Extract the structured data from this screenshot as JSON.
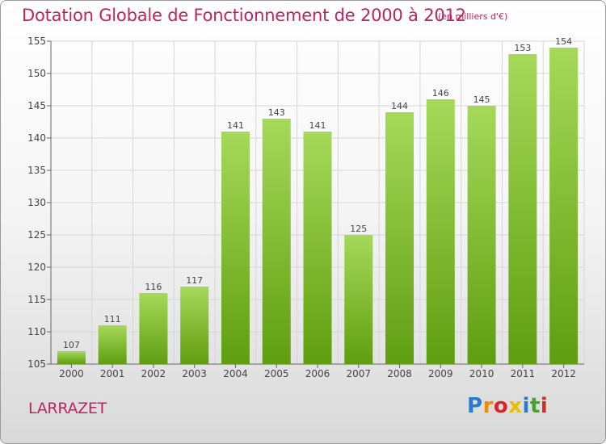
{
  "header": {
    "title": "Dotation Globale de Fonctionnement de 2000 à 2012",
    "subtitle": "(en milliers d'€)"
  },
  "footer": {
    "commune": "LARRAZET",
    "brand": "Proxiti",
    "brand_letter_colors": [
      "#2a7ad0",
      "#f08a00",
      "#d8262c",
      "#e8c000",
      "#2a7ad0",
      "#4aa02c",
      "#d8262c"
    ]
  },
  "colors": {
    "title": "#c0235e",
    "bar_light": "#a6d95a",
    "bar_dark": "#5f9e10",
    "grid": "#d6d6d6",
    "axis": "#666666"
  },
  "chart_data": {
    "type": "bar",
    "title": "Dotation Globale de Fonctionnement de 2000 à 2012",
    "subtitle": "(en milliers d'€)",
    "xlabel": "",
    "ylabel": "",
    "categories": [
      "2000",
      "2001",
      "2002",
      "2003",
      "2004",
      "2005",
      "2006",
      "2007",
      "2008",
      "2009",
      "2010",
      "2011",
      "2012"
    ],
    "values": [
      107,
      111,
      116,
      117,
      141,
      143,
      141,
      125,
      144,
      146,
      145,
      153,
      154
    ],
    "ylim": [
      105,
      155
    ],
    "yticks": [
      105,
      110,
      115,
      120,
      125,
      130,
      135,
      140,
      145,
      150,
      155
    ],
    "grid": true,
    "data_labels": true
  }
}
